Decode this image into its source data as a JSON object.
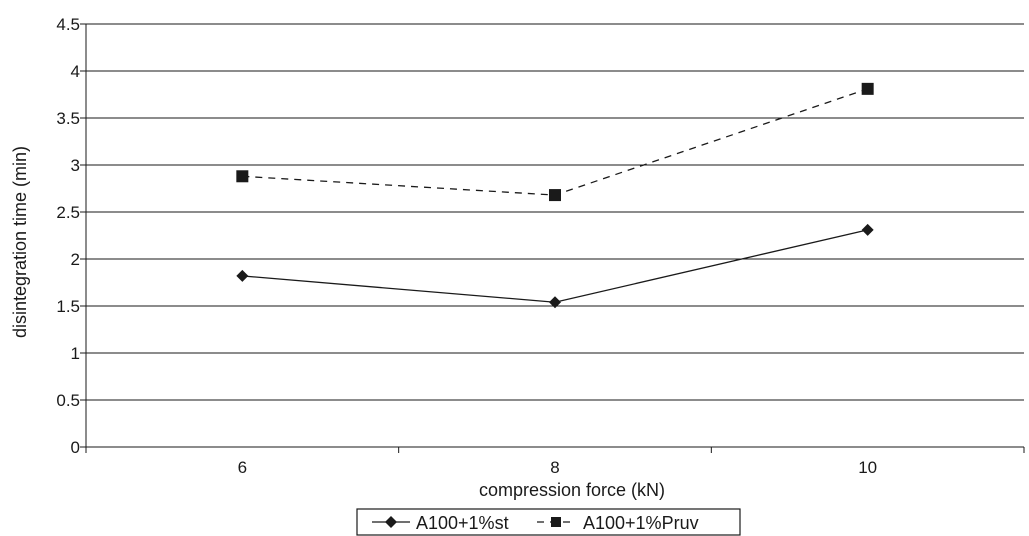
{
  "chart_data": {
    "type": "line",
    "xlabel": "compression force (kN)",
    "ylabel": "disintegration time  (min)",
    "categories": [
      "6",
      "8",
      "10"
    ],
    "ylim": [
      0,
      4.5
    ],
    "yticks": [
      "0",
      "0.5",
      "1",
      "1.5",
      "2",
      "2.5",
      "3",
      "3.5",
      "4",
      "4.5"
    ],
    "grid": true,
    "legend_position": "bottom",
    "series": [
      {
        "name": "A100+1%st",
        "values": [
          1.82,
          1.54,
          2.31
        ],
        "line_style": "solid",
        "marker": "diamond",
        "color": "#1a1a1a"
      },
      {
        "name": "A100+1%Pruv",
        "values": [
          2.88,
          2.68,
          3.81
        ],
        "line_style": "dashed",
        "marker": "square",
        "color": "#1a1a1a"
      }
    ]
  }
}
